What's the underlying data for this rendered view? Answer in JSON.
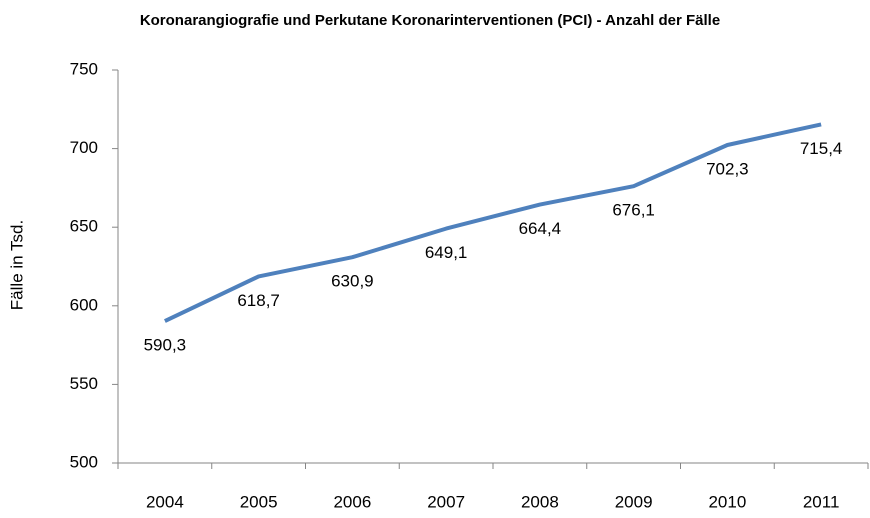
{
  "chart_data": {
    "type": "line",
    "title": "Koronarangiografie und Perkutane Koronarinterventionen (PCI) - Anzahl der Fälle",
    "y_label": "Fälle in Tsd.",
    "categories": [
      "2004",
      "2005",
      "2006",
      "2007",
      "2008",
      "2009",
      "2010",
      "2011"
    ],
    "values": [
      590.3,
      618.7,
      630.9,
      649.1,
      664.4,
      676.1,
      702.3,
      715.4
    ],
    "value_labels": [
      "590,3",
      "618,7",
      "630,9",
      "649,1",
      "664,4",
      "676,1",
      "702,3",
      "715,4"
    ],
    "color": "#4f81bd",
    "ylim": [
      500,
      750
    ],
    "yticks": [
      500,
      550,
      600,
      650,
      700,
      750
    ],
    "grid": false
  }
}
